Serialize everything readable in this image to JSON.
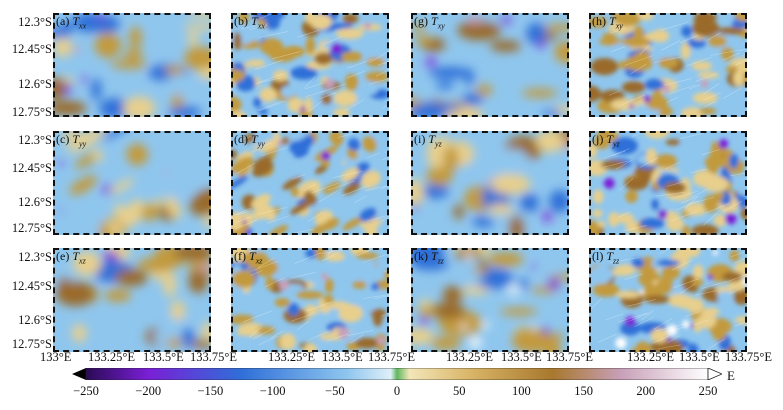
{
  "y_axis_labels": [
    "12.3°S",
    "12.45°S",
    "12.6°S",
    "12.75°S"
  ],
  "x_axis_labels": {
    "col1": [
      "133°E",
      "133.25°E",
      "133.5°E",
      "133.75°E"
    ],
    "col2": [
      "133.25°E",
      "133.5°E",
      "133.75°E"
    ],
    "col3": [
      "133.25°E",
      "133.5°E",
      "133.75°E"
    ],
    "col4": [
      "133.25°E",
      "133.5°E",
      "133.75°E"
    ]
  },
  "panels": [
    {
      "letter": "(a)",
      "sym": "T",
      "sub": "xx",
      "texture": "smooth"
    },
    {
      "letter": "(b)",
      "sym": "T",
      "sub": "xx",
      "texture": "rough"
    },
    {
      "letter": "(g)",
      "sym": "T",
      "sub": "xy",
      "texture": "smooth"
    },
    {
      "letter": "(h)",
      "sym": "T",
      "sub": "xy",
      "texture": "rough"
    },
    {
      "letter": "(c)",
      "sym": "T",
      "sub": "yy",
      "texture": "smooth"
    },
    {
      "letter": "(d)",
      "sym": "T",
      "sub": "yy",
      "texture": "rough"
    },
    {
      "letter": "(i)",
      "sym": "T",
      "sub": "yz",
      "texture": "smooth"
    },
    {
      "letter": "(j)",
      "sym": "T",
      "sub": "yz",
      "texture": "rough"
    },
    {
      "letter": "(e)",
      "sym": "T",
      "sub": "xz",
      "texture": "smooth"
    },
    {
      "letter": "(f)",
      "sym": "T",
      "sub": "xz",
      "texture": "rough"
    },
    {
      "letter": "(k)",
      "sym": "T",
      "sub": "zz",
      "texture": "smooth"
    },
    {
      "letter": "(l)",
      "sym": "T",
      "sub": "zz",
      "texture": "rough"
    }
  ],
  "colorbar": {
    "ticks": [
      "−250",
      "−200",
      "−150",
      "−100",
      "−50",
      "0",
      "50",
      "100",
      "150",
      "200",
      "250"
    ],
    "min": -250,
    "max": 250,
    "unit": "E",
    "colors": {
      "neg_extreme": "#000000",
      "neg_strong": "#7a1fd6",
      "neg_mid": "#2f6fd8",
      "neg_weak": "#8fc6ee",
      "zero": "#5fb85f",
      "pos_weak": "#e8cf8c",
      "pos_mid": "#c29a3c",
      "pos_strong": "#9a6a2a",
      "pos_high": "#c8a0b8",
      "pos_extreme": "#ffffff"
    }
  }
}
